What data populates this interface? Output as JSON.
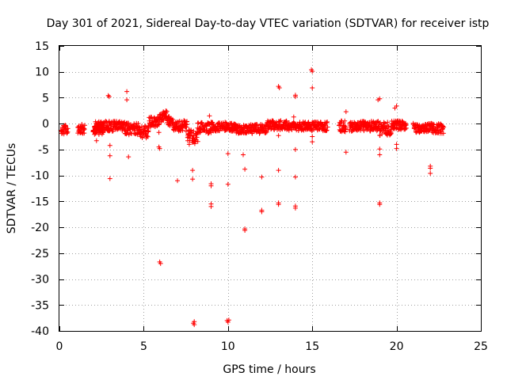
{
  "chart_data": {
    "type": "scatter",
    "title": "Day 301 of 2021, Sidereal Day-to-day VTEC variation (SDTVAR) for receiver istp",
    "xlabel": "GPS time / hours",
    "ylabel": "SDTVAR / TECUs",
    "xlim": [
      0,
      25
    ],
    "ylim": [
      -40,
      15
    ],
    "grid": true,
    "marker": "+",
    "color": "#ff0000",
    "xticks": [
      0,
      5,
      10,
      15,
      20,
      25
    ],
    "yticks": [
      15,
      10,
      5,
      0,
      -5,
      -10,
      -15,
      -20,
      -25,
      -30,
      -35,
      -40
    ],
    "bands": [
      {
        "x_start": 0.1,
        "x_end": 0.5,
        "center": -1.2,
        "spread": 0.9
      },
      {
        "x_start": 1.1,
        "x_end": 1.5,
        "center": -1.0,
        "spread": 0.9
      },
      {
        "x_start": 2.0,
        "x_end": 2.6,
        "center": -1.3,
        "spread": 0.8
      },
      {
        "x_start": 2.1,
        "x_end": 3.9,
        "center": -0.5,
        "spread": 1.0
      },
      {
        "x_start": 3.9,
        "x_end": 4.8,
        "center": -1.0,
        "spread": 1.2
      },
      {
        "x_start": 4.8,
        "x_end": 5.3,
        "center": -1.6,
        "spread": 1.2
      },
      {
        "x_start": 5.3,
        "x_end": 6.4,
        "center": 0.3,
        "spread": 1.0
      },
      {
        "x_start": 6.4,
        "x_end": 7.6,
        "center": -0.4,
        "spread": 1.1
      },
      {
        "x_start": 7.6,
        "x_end": 8.2,
        "center": -2.5,
        "spread": 1.4
      },
      {
        "x_start": 8.2,
        "x_end": 9.0,
        "center": -0.8,
        "spread": 1.1
      },
      {
        "x_start": 9.0,
        "x_end": 10.5,
        "center": -0.6,
        "spread": 0.9
      },
      {
        "x_start": 10.5,
        "x_end": 11.3,
        "center": -1.1,
        "spread": 0.8
      },
      {
        "x_start": 11.3,
        "x_end": 12.3,
        "center": -1.0,
        "spread": 0.9
      },
      {
        "x_start": 12.3,
        "x_end": 13.5,
        "center": -0.3,
        "spread": 0.9
      },
      {
        "x_start": 13.5,
        "x_end": 14.7,
        "center": -0.5,
        "spread": 0.9
      },
      {
        "x_start": 14.7,
        "x_end": 15.9,
        "center": -0.5,
        "spread": 0.9
      },
      {
        "x_start": 16.6,
        "x_end": 17.0,
        "center": -0.5,
        "spread": 1.2
      },
      {
        "x_start": 17.2,
        "x_end": 19.0,
        "center": -0.5,
        "spread": 1.0
      },
      {
        "x_start": 19.0,
        "x_end": 19.7,
        "center": -1.0,
        "spread": 1.3
      },
      {
        "x_start": 19.7,
        "x_end": 20.6,
        "center": -0.3,
        "spread": 0.9
      },
      {
        "x_start": 21.0,
        "x_end": 22.1,
        "center": -0.8,
        "spread": 0.9
      },
      {
        "x_start": 22.1,
        "x_end": 22.8,
        "center": -0.9,
        "spread": 1.0
      }
    ],
    "outliers": [
      [
        2.2,
        -3.3
      ],
      [
        2.9,
        5.4
      ],
      [
        2.95,
        5.2
      ],
      [
        3.0,
        -4.2
      ],
      [
        3.0,
        -6.2
      ],
      [
        3.0,
        -10.6
      ],
      [
        4.0,
        6.2
      ],
      [
        4.0,
        4.6
      ],
      [
        4.1,
        -6.4
      ],
      [
        5.9,
        -1.7
      ],
      [
        5.9,
        -4.5
      ],
      [
        5.95,
        -4.8
      ],
      [
        5.95,
        -26.7
      ],
      [
        6.0,
        -27.0
      ],
      [
        7.0,
        -11.0
      ],
      [
        7.7,
        -4.0
      ],
      [
        7.9,
        -9.0
      ],
      [
        7.9,
        -10.7
      ],
      [
        7.95,
        -38.5
      ],
      [
        8.0,
        -38.8
      ],
      [
        8.0,
        -38.2
      ],
      [
        8.9,
        1.5
      ],
      [
        9.0,
        -11.6
      ],
      [
        9.0,
        -12.0
      ],
      [
        9.0,
        -15.5
      ],
      [
        9.0,
        -16.0
      ],
      [
        10.0,
        -5.8
      ],
      [
        10.0,
        -11.7
      ],
      [
        9.95,
        -38.0
      ],
      [
        10.0,
        -38.3
      ],
      [
        10.05,
        -37.9
      ],
      [
        10.9,
        -6.0
      ],
      [
        11.0,
        -8.8
      ],
      [
        11.0,
        -20.3
      ],
      [
        11.0,
        -20.6
      ],
      [
        12.0,
        -10.3
      ],
      [
        12.0,
        -16.7
      ],
      [
        12.0,
        -17.0
      ],
      [
        13.0,
        7.2
      ],
      [
        13.05,
        6.9
      ],
      [
        13.0,
        -9.0
      ],
      [
        13.0,
        -15.3
      ],
      [
        13.0,
        -15.6
      ],
      [
        13.0,
        -2.3
      ],
      [
        13.9,
        1.3
      ],
      [
        14.0,
        5.5
      ],
      [
        14.0,
        5.2
      ],
      [
        14.0,
        -5.0
      ],
      [
        14.0,
        -10.3
      ],
      [
        14.0,
        -15.9
      ],
      [
        14.0,
        -16.3
      ],
      [
        14.95,
        10.4
      ],
      [
        15.0,
        10.1
      ],
      [
        15.0,
        6.9
      ],
      [
        15.0,
        -2.5
      ],
      [
        15.0,
        -3.5
      ],
      [
        17.0,
        2.3
      ],
      [
        17.0,
        -5.5
      ],
      [
        18.9,
        4.6
      ],
      [
        19.0,
        4.8
      ],
      [
        19.0,
        -4.9
      ],
      [
        19.0,
        -6.0
      ],
      [
        19.0,
        -15.3
      ],
      [
        19.0,
        -15.6
      ],
      [
        19.9,
        3.0
      ],
      [
        20.0,
        3.4
      ],
      [
        20.0,
        -4.0
      ],
      [
        20.0,
        -4.8
      ],
      [
        22.0,
        -8.2
      ],
      [
        22.0,
        -8.6
      ],
      [
        22.0,
        -9.6
      ]
    ]
  }
}
